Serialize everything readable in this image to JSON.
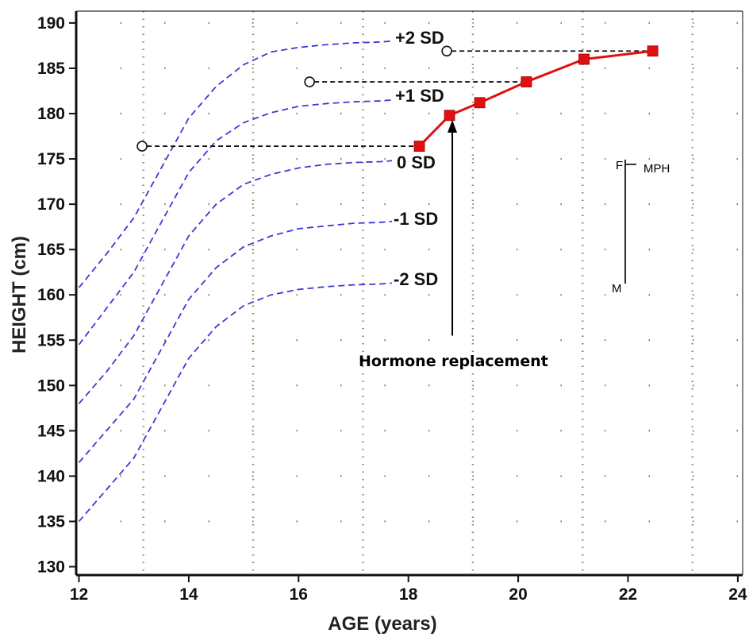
{
  "chart_data": {
    "type": "line",
    "xlabel": "AGE (years)",
    "ylabel": "HEIGHT (cm)",
    "xlim": [
      12,
      24
    ],
    "ylim": [
      130,
      190
    ],
    "xticks": [
      "12",
      "14",
      "16",
      "18",
      "20",
      "22",
      "24"
    ],
    "yticks": [
      "130",
      "135",
      "140",
      "145",
      "150",
      "155",
      "160",
      "165",
      "170",
      "175",
      "180",
      "185",
      "190"
    ],
    "grid": true,
    "reference_curves": [
      {
        "name": "+2 SD",
        "x": [
          12,
          12.5,
          13,
          13.5,
          14,
          14.5,
          15,
          15.5,
          16,
          16.5,
          17,
          17.5,
          17.7
        ],
        "y": [
          160.8,
          164.5,
          168.5,
          174.0,
          179.5,
          183.0,
          185.4,
          186.8,
          187.3,
          187.6,
          187.8,
          187.9,
          188.0
        ]
      },
      {
        "name": "+1 SD",
        "x": [
          12,
          12.5,
          13,
          13.5,
          14,
          14.5,
          15,
          15.5,
          16,
          16.5,
          17,
          17.5,
          17.7
        ],
        "y": [
          154.5,
          158.5,
          162.5,
          168.0,
          173.5,
          177.0,
          179.0,
          180.1,
          180.8,
          181.1,
          181.3,
          181.4,
          181.5
        ]
      },
      {
        "name": "0 SD",
        "x": [
          12,
          12.5,
          13,
          13.5,
          14,
          14.5,
          15,
          15.5,
          16,
          16.5,
          17,
          17.5,
          17.7
        ],
        "y": [
          148.0,
          151.5,
          155.5,
          161.0,
          166.5,
          170.0,
          172.2,
          173.3,
          174.0,
          174.4,
          174.6,
          174.7,
          174.8
        ]
      },
      {
        "name": "-1 SD",
        "x": [
          12,
          12.5,
          13,
          13.5,
          14,
          14.5,
          15,
          15.5,
          16,
          16.5,
          17,
          17.5,
          17.7
        ],
        "y": [
          141.5,
          145.0,
          148.5,
          154.0,
          159.5,
          163.0,
          165.3,
          166.5,
          167.3,
          167.6,
          167.9,
          168.0,
          168.1
        ]
      },
      {
        "name": "-2 SD",
        "x": [
          12,
          12.5,
          13,
          13.5,
          14,
          14.5,
          15,
          15.5,
          16,
          16.5,
          17,
          17.5,
          17.7
        ],
        "y": [
          135.0,
          138.5,
          142.0,
          147.5,
          153.0,
          156.5,
          158.8,
          160.0,
          160.6,
          160.9,
          161.1,
          161.2,
          161.3
        ]
      }
    ],
    "series": [
      {
        "name": "",
        "x": [
          18.2,
          18.75,
          19.3,
          20.15,
          21.2,
          22.45
        ],
        "y": [
          176.4,
          179.8,
          181.2,
          183.5,
          186.0,
          186.9
        ]
      }
    ],
    "open_markers": [
      {
        "x": 13.15,
        "y": 176.4,
        "line_to_x": 18.2
      },
      {
        "x": 16.2,
        "y": 183.5,
        "line_to_x": 20.15
      },
      {
        "x": 18.7,
        "y": 186.9,
        "line_to_x": 22.45
      }
    ],
    "annotations": {
      "arrow_text": "Hormone replacement",
      "arrow_x": 18.8,
      "arrow_y_from": 155.5,
      "arrow_y_to": 179.3,
      "mph_label": "MPH",
      "father_label": "F",
      "mother_label": "M",
      "mph_x": 21.95,
      "mph_father_height": 174.4,
      "mph_mother_height": 161.5,
      "mph_target_height": 174.4
    }
  },
  "colors": {
    "reference": "#3a3ad6",
    "patient": "#e01010",
    "grid": "#8a8a5a",
    "axis": "#111111"
  }
}
